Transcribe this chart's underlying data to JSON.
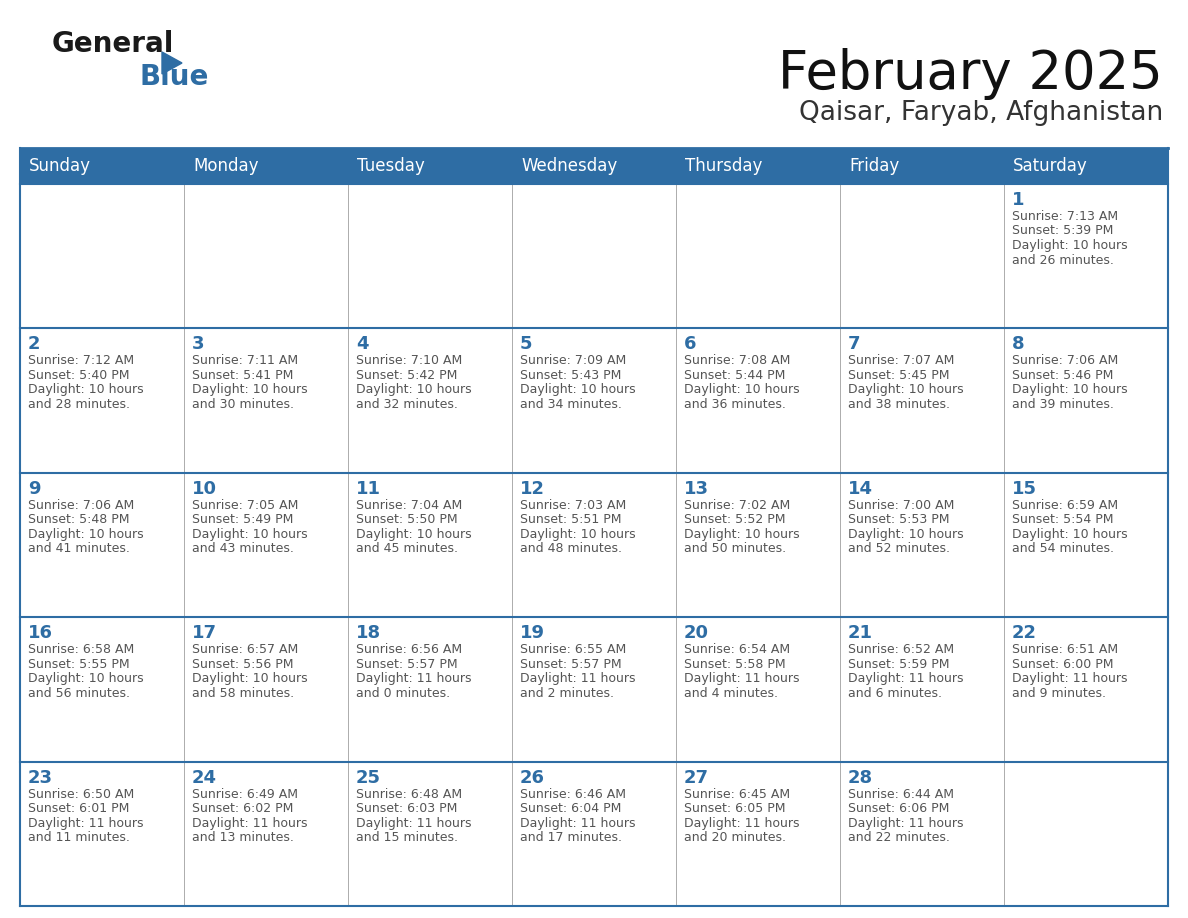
{
  "title": "February 2025",
  "subtitle": "Qaisar, Faryab, Afghanistan",
  "header_bg_color": "#2E6DA4",
  "header_text_color": "#FFFFFF",
  "border_color": "#2E6DA4",
  "cell_border_color": "#AAAAAA",
  "text_color": "#333333",
  "day_number_color": "#2E6DA4",
  "info_text_color": "#555555",
  "bg_color": "#FFFFFF",
  "day_headers": [
    "Sunday",
    "Monday",
    "Tuesday",
    "Wednesday",
    "Thursday",
    "Friday",
    "Saturday"
  ],
  "calendar_data": [
    [
      {
        "day": "",
        "info": ""
      },
      {
        "day": "",
        "info": ""
      },
      {
        "day": "",
        "info": ""
      },
      {
        "day": "",
        "info": ""
      },
      {
        "day": "",
        "info": ""
      },
      {
        "day": "",
        "info": ""
      },
      {
        "day": "1",
        "info": "Sunrise: 7:13 AM\nSunset: 5:39 PM\nDaylight: 10 hours\nand 26 minutes."
      }
    ],
    [
      {
        "day": "2",
        "info": "Sunrise: 7:12 AM\nSunset: 5:40 PM\nDaylight: 10 hours\nand 28 minutes."
      },
      {
        "day": "3",
        "info": "Sunrise: 7:11 AM\nSunset: 5:41 PM\nDaylight: 10 hours\nand 30 minutes."
      },
      {
        "day": "4",
        "info": "Sunrise: 7:10 AM\nSunset: 5:42 PM\nDaylight: 10 hours\nand 32 minutes."
      },
      {
        "day": "5",
        "info": "Sunrise: 7:09 AM\nSunset: 5:43 PM\nDaylight: 10 hours\nand 34 minutes."
      },
      {
        "day": "6",
        "info": "Sunrise: 7:08 AM\nSunset: 5:44 PM\nDaylight: 10 hours\nand 36 minutes."
      },
      {
        "day": "7",
        "info": "Sunrise: 7:07 AM\nSunset: 5:45 PM\nDaylight: 10 hours\nand 38 minutes."
      },
      {
        "day": "8",
        "info": "Sunrise: 7:06 AM\nSunset: 5:46 PM\nDaylight: 10 hours\nand 39 minutes."
      }
    ],
    [
      {
        "day": "9",
        "info": "Sunrise: 7:06 AM\nSunset: 5:48 PM\nDaylight: 10 hours\nand 41 minutes."
      },
      {
        "day": "10",
        "info": "Sunrise: 7:05 AM\nSunset: 5:49 PM\nDaylight: 10 hours\nand 43 minutes."
      },
      {
        "day": "11",
        "info": "Sunrise: 7:04 AM\nSunset: 5:50 PM\nDaylight: 10 hours\nand 45 minutes."
      },
      {
        "day": "12",
        "info": "Sunrise: 7:03 AM\nSunset: 5:51 PM\nDaylight: 10 hours\nand 48 minutes."
      },
      {
        "day": "13",
        "info": "Sunrise: 7:02 AM\nSunset: 5:52 PM\nDaylight: 10 hours\nand 50 minutes."
      },
      {
        "day": "14",
        "info": "Sunrise: 7:00 AM\nSunset: 5:53 PM\nDaylight: 10 hours\nand 52 minutes."
      },
      {
        "day": "15",
        "info": "Sunrise: 6:59 AM\nSunset: 5:54 PM\nDaylight: 10 hours\nand 54 minutes."
      }
    ],
    [
      {
        "day": "16",
        "info": "Sunrise: 6:58 AM\nSunset: 5:55 PM\nDaylight: 10 hours\nand 56 minutes."
      },
      {
        "day": "17",
        "info": "Sunrise: 6:57 AM\nSunset: 5:56 PM\nDaylight: 10 hours\nand 58 minutes."
      },
      {
        "day": "18",
        "info": "Sunrise: 6:56 AM\nSunset: 5:57 PM\nDaylight: 11 hours\nand 0 minutes."
      },
      {
        "day": "19",
        "info": "Sunrise: 6:55 AM\nSunset: 5:57 PM\nDaylight: 11 hours\nand 2 minutes."
      },
      {
        "day": "20",
        "info": "Sunrise: 6:54 AM\nSunset: 5:58 PM\nDaylight: 11 hours\nand 4 minutes."
      },
      {
        "day": "21",
        "info": "Sunrise: 6:52 AM\nSunset: 5:59 PM\nDaylight: 11 hours\nand 6 minutes."
      },
      {
        "day": "22",
        "info": "Sunrise: 6:51 AM\nSunset: 6:00 PM\nDaylight: 11 hours\nand 9 minutes."
      }
    ],
    [
      {
        "day": "23",
        "info": "Sunrise: 6:50 AM\nSunset: 6:01 PM\nDaylight: 11 hours\nand 11 minutes."
      },
      {
        "day": "24",
        "info": "Sunrise: 6:49 AM\nSunset: 6:02 PM\nDaylight: 11 hours\nand 13 minutes."
      },
      {
        "day": "25",
        "info": "Sunrise: 6:48 AM\nSunset: 6:03 PM\nDaylight: 11 hours\nand 15 minutes."
      },
      {
        "day": "26",
        "info": "Sunrise: 6:46 AM\nSunset: 6:04 PM\nDaylight: 11 hours\nand 17 minutes."
      },
      {
        "day": "27",
        "info": "Sunrise: 6:45 AM\nSunset: 6:05 PM\nDaylight: 11 hours\nand 20 minutes."
      },
      {
        "day": "28",
        "info": "Sunrise: 6:44 AM\nSunset: 6:06 PM\nDaylight: 11 hours\nand 22 minutes."
      },
      {
        "day": "",
        "info": ""
      }
    ]
  ],
  "logo_general_color": "#1a1a1a",
  "logo_blue_color": "#2E6DA4",
  "title_fontsize": 38,
  "subtitle_fontsize": 19,
  "header_fontsize": 12,
  "day_num_fontsize": 13,
  "info_fontsize": 9
}
